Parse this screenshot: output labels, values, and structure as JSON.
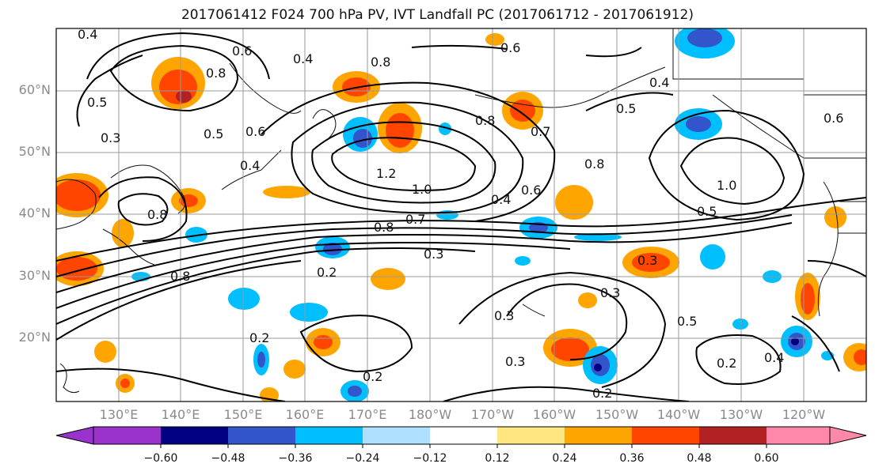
{
  "title": "2017061412 F024 700 hPa PV, IVT Landfall PC (2017061712 - 2017061912)",
  "latitude_labels": [
    "60°N",
    "50°N",
    "40°N",
    "30°N",
    "20°N"
  ],
  "longitude_labels": [
    "130°E",
    "140°E",
    "150°E",
    "160°E",
    "170°E",
    "180°W",
    "170°W",
    "160°W",
    "150°W",
    "140°W",
    "130°W",
    "120°W"
  ],
  "contour_labels": [
    "0.4",
    "0.6",
    "0.8",
    "0.5",
    "0.3",
    "0.5",
    "0.4",
    "0.8",
    "0.6",
    "0.4",
    "1.2",
    "1.0",
    "0.2",
    "0.8",
    "0.7",
    "0.4",
    "0.6",
    "0.3",
    "0.2",
    "0.8",
    "0.3",
    "0.3",
    "0.2",
    "0.3",
    "0.2",
    "0.5",
    "0.2",
    "0.4",
    "0.3",
    "1.0",
    "0.5",
    "0.8",
    "0.6",
    "0.4",
    "0.8",
    "0.5",
    "0.7",
    "0.6",
    "0.8"
  ],
  "colorbar": {
    "tick_labels": [
      "−0.60",
      "−0.48",
      "−0.36",
      "−0.24",
      "−0.12",
      "0.12",
      "0.24",
      "0.36",
      "0.48",
      "0.60"
    ],
    "colors": [
      "#9933cc",
      "#000080",
      "#3355cc",
      "#00bfff",
      "#afe0ff",
      "#ffffff",
      "#ffe680",
      "#ffa500",
      "#ff4500",
      "#b22222",
      "#ff88aa"
    ]
  }
}
